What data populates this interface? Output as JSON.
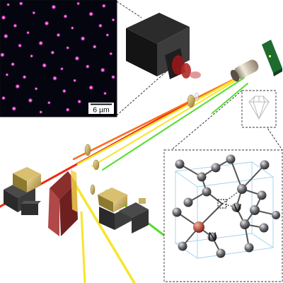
{
  "microscope_image": {
    "scale_bar_label": "6 µm",
    "spot_color": "#ff4fe0",
    "background": "#050510",
    "spots": [
      [
        0.07,
        0.04
      ],
      [
        0.18,
        0.03
      ],
      [
        0.46,
        0.06
      ],
      [
        0.67,
        0.03
      ],
      [
        0.89,
        0.05
      ],
      [
        0.03,
        0.15
      ],
      [
        0.29,
        0.11
      ],
      [
        0.56,
        0.14
      ],
      [
        0.78,
        0.12
      ],
      [
        0.97,
        0.17
      ],
      [
        0.13,
        0.22
      ],
      [
        0.4,
        0.2
      ],
      [
        0.62,
        0.24
      ],
      [
        0.86,
        0.22
      ],
      [
        0.05,
        0.31
      ],
      [
        0.24,
        0.28
      ],
      [
        0.5,
        0.3
      ],
      [
        0.71,
        0.33
      ],
      [
        0.92,
        0.3
      ],
      [
        0.17,
        0.39
      ],
      [
        0.35,
        0.37
      ],
      [
        0.58,
        0.41
      ],
      [
        0.81,
        0.4
      ],
      [
        0.02,
        0.47
      ],
      [
        0.27,
        0.48
      ],
      [
        0.45,
        0.45
      ],
      [
        0.66,
        0.5
      ],
      [
        0.95,
        0.46
      ],
      [
        0.11,
        0.55
      ],
      [
        0.38,
        0.56
      ],
      [
        0.53,
        0.59
      ],
      [
        0.75,
        0.57
      ],
      [
        0.88,
        0.6
      ],
      [
        0.06,
        0.64
      ],
      [
        0.21,
        0.66
      ],
      [
        0.47,
        0.67
      ],
      [
        0.64,
        0.69
      ],
      [
        0.97,
        0.66
      ],
      [
        0.15,
        0.74
      ],
      [
        0.31,
        0.76
      ],
      [
        0.55,
        0.78
      ],
      [
        0.78,
        0.75
      ],
      [
        0.9,
        0.8
      ],
      [
        0.03,
        0.84
      ],
      [
        0.26,
        0.86
      ],
      [
        0.42,
        0.88
      ],
      [
        0.68,
        0.87
      ],
      [
        0.12,
        0.93
      ],
      [
        0.35,
        0.96
      ],
      [
        0.58,
        0.94
      ],
      [
        0.84,
        0.92
      ]
    ]
  },
  "nv_center": {
    "nitrogen_label": "N",
    "vacancy_label": "V",
    "nitrogen_color": "#c4604e",
    "carbon_color": "#6e6e72"
  },
  "beams": {
    "green": "#56dd2e",
    "yellow": "#f5e62a",
    "orange": "#ff6a1a",
    "red": "#ee2a12"
  }
}
